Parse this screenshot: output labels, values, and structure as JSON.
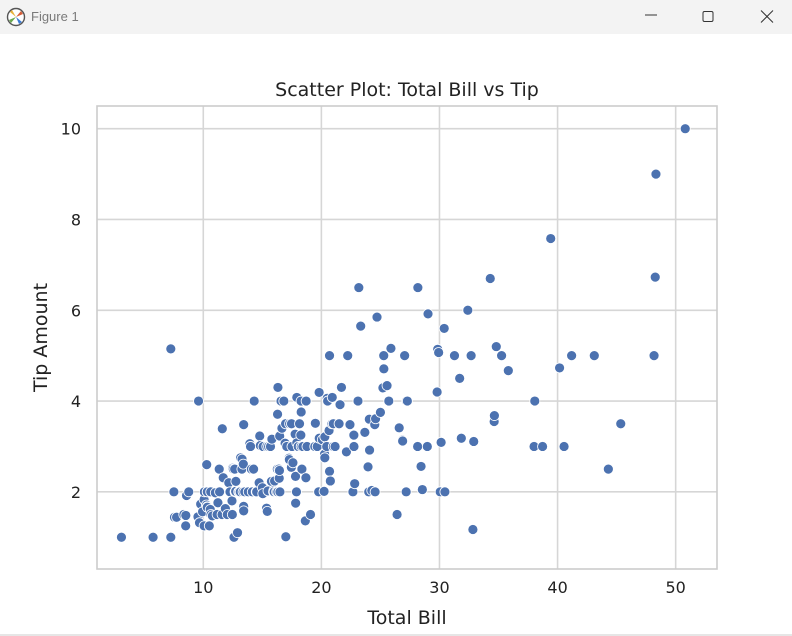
{
  "window": {
    "title": "Figure 1",
    "icons": [
      "matplotlib-app-icon",
      "minimize-icon",
      "maximize-icon",
      "close-icon"
    ]
  },
  "chart_data": {
    "type": "scatter",
    "title": "Scatter Plot: Total Bill vs Tip",
    "xlabel": "Total Bill",
    "ylabel": "Tip Amount",
    "xlim": [
      1,
      53.5
    ],
    "ylim": [
      0.3,
      10.5
    ],
    "xticks": [
      10,
      20,
      30,
      40,
      50
    ],
    "yticks": [
      2,
      4,
      6,
      8,
      10
    ],
    "grid": true,
    "marker_color": "#4c72b0",
    "points": [
      [
        3.07,
        1.0
      ],
      [
        5.75,
        1.0
      ],
      [
        7.25,
        1.0
      ],
      [
        7.25,
        5.15
      ],
      [
        7.51,
        2.0
      ],
      [
        7.56,
        1.44
      ],
      [
        7.74,
        1.44
      ],
      [
        8.35,
        1.5
      ],
      [
        8.51,
        1.25
      ],
      [
        8.52,
        1.48
      ],
      [
        8.58,
        1.92
      ],
      [
        8.77,
        2.0
      ],
      [
        9.55,
        1.45
      ],
      [
        9.6,
        4.0
      ],
      [
        9.68,
        1.32
      ],
      [
        9.78,
        1.73
      ],
      [
        9.94,
        1.56
      ],
      [
        10.07,
        1.25
      ],
      [
        10.07,
        1.83
      ],
      [
        10.09,
        2.0
      ],
      [
        10.27,
        1.71
      ],
      [
        10.29,
        2.6
      ],
      [
        10.33,
        1.67
      ],
      [
        10.33,
        2.0
      ],
      [
        10.34,
        1.66
      ],
      [
        10.34,
        2.0
      ],
      [
        10.51,
        1.25
      ],
      [
        10.59,
        1.61
      ],
      [
        10.63,
        2.0
      ],
      [
        10.65,
        1.5
      ],
      [
        10.77,
        1.47
      ],
      [
        11.02,
        1.98
      ],
      [
        11.17,
        1.5
      ],
      [
        11.24,
        1.76
      ],
      [
        11.35,
        2.5
      ],
      [
        11.38,
        2.0
      ],
      [
        11.59,
        1.5
      ],
      [
        11.61,
        3.39
      ],
      [
        11.69,
        2.31
      ],
      [
        11.87,
        1.63
      ],
      [
        12.03,
        1.5
      ],
      [
        12.16,
        2.2
      ],
      [
        12.26,
        2.0
      ],
      [
        12.43,
        1.8
      ],
      [
        12.46,
        1.5
      ],
      [
        12.48,
        2.52
      ],
      [
        12.54,
        2.5
      ],
      [
        12.6,
        1.0
      ],
      [
        12.66,
        2.5
      ],
      [
        12.69,
        2.0
      ],
      [
        12.74,
        2.01
      ],
      [
        12.76,
        2.23
      ],
      [
        12.9,
        1.1
      ],
      [
        13.0,
        2.0
      ],
      [
        13.03,
        2.0
      ],
      [
        13.13,
        2.0
      ],
      [
        13.16,
        2.75
      ],
      [
        13.27,
        2.5
      ],
      [
        13.28,
        2.72
      ],
      [
        13.37,
        2.0
      ],
      [
        13.39,
        2.61
      ],
      [
        13.42,
        3.48
      ],
      [
        13.42,
        1.68
      ],
      [
        13.42,
        1.58
      ],
      [
        13.51,
        2.0
      ],
      [
        13.81,
        2.0
      ],
      [
        13.94,
        3.06
      ],
      [
        14.0,
        3.0
      ],
      [
        14.07,
        2.5
      ],
      [
        14.15,
        2.0
      ],
      [
        14.26,
        2.5
      ],
      [
        14.31,
        4.0
      ],
      [
        14.48,
        2.0
      ],
      [
        14.52,
        2.0
      ],
      [
        14.73,
        2.2
      ],
      [
        14.78,
        3.23
      ],
      [
        14.83,
        3.02
      ],
      [
        15.01,
        2.09
      ],
      [
        15.04,
        1.96
      ],
      [
        15.06,
        3.0
      ],
      [
        15.36,
        1.64
      ],
      [
        15.38,
        3.0
      ],
      [
        15.42,
        1.57
      ],
      [
        15.48,
        2.02
      ],
      [
        15.53,
        3.0
      ],
      [
        15.69,
        3.0
      ],
      [
        15.77,
        2.23
      ],
      [
        15.81,
        3.16
      ],
      [
        15.95,
        2.0
      ],
      [
        15.98,
        2.03
      ],
      [
        16.0,
        2.0
      ],
      [
        16.04,
        2.24
      ],
      [
        16.21,
        2.0
      ],
      [
        16.27,
        2.5
      ],
      [
        16.29,
        3.71
      ],
      [
        16.31,
        2.0
      ],
      [
        16.32,
        4.3
      ],
      [
        16.4,
        2.5
      ],
      [
        16.43,
        2.3
      ],
      [
        16.45,
        2.47
      ],
      [
        16.47,
        3.23
      ],
      [
        16.49,
        2.0
      ],
      [
        16.58,
        4.0
      ],
      [
        16.66,
        3.4
      ],
      [
        16.82,
        4.0
      ],
      [
        16.93,
        3.07
      ],
      [
        16.97,
        3.5
      ],
      [
        16.99,
        1.01
      ],
      [
        17.07,
        3.0
      ],
      [
        17.26,
        2.74
      ],
      [
        17.29,
        2.71
      ],
      [
        17.31,
        3.5
      ],
      [
        17.46,
        2.54
      ],
      [
        17.47,
        3.5
      ],
      [
        17.51,
        3.0
      ],
      [
        17.59,
        2.64
      ],
      [
        17.78,
        3.27
      ],
      [
        17.81,
        2.34
      ],
      [
        17.82,
        1.75
      ],
      [
        17.89,
        2.0
      ],
      [
        17.92,
        4.08
      ],
      [
        17.92,
        3.08
      ],
      [
        18.04,
        3.0
      ],
      [
        18.15,
        3.5
      ],
      [
        18.24,
        3.76
      ],
      [
        18.26,
        3.25
      ],
      [
        18.28,
        4.0
      ],
      [
        18.29,
        3.0
      ],
      [
        18.29,
        3.76
      ],
      [
        18.35,
        2.5
      ],
      [
        18.43,
        3.0
      ],
      [
        18.64,
        1.36
      ],
      [
        18.69,
        2.31
      ],
      [
        18.71,
        4.0
      ],
      [
        18.78,
        3.0
      ],
      [
        19.08,
        1.5
      ],
      [
        19.44,
        3.0
      ],
      [
        19.49,
        3.51
      ],
      [
        19.65,
        3.0
      ],
      [
        19.77,
        2.0
      ],
      [
        19.81,
        4.19
      ],
      [
        19.82,
        3.18
      ],
      [
        20.08,
        3.15
      ],
      [
        20.23,
        2.01
      ],
      [
        20.27,
        2.83
      ],
      [
        20.29,
        2.75
      ],
      [
        20.29,
        3.21
      ],
      [
        20.45,
        3.0
      ],
      [
        20.49,
        4.06
      ],
      [
        20.53,
        4.0
      ],
      [
        20.65,
        3.35
      ],
      [
        20.69,
        2.45
      ],
      [
        20.69,
        5.0
      ],
      [
        20.76,
        2.24
      ],
      [
        20.9,
        3.5
      ],
      [
        20.92,
        4.08
      ],
      [
        21.01,
        3.5
      ],
      [
        21.01,
        3.0
      ],
      [
        21.16,
        3.0
      ],
      [
        21.5,
        3.5
      ],
      [
        21.58,
        3.92
      ],
      [
        21.7,
        4.3
      ],
      [
        22.12,
        2.88
      ],
      [
        22.23,
        5.0
      ],
      [
        22.42,
        3.48
      ],
      [
        22.67,
        2.0
      ],
      [
        22.75,
        3.25
      ],
      [
        22.76,
        3.0
      ],
      [
        22.82,
        2.18
      ],
      [
        23.1,
        4.0
      ],
      [
        23.17,
        6.5
      ],
      [
        23.33,
        5.65
      ],
      [
        23.68,
        3.31
      ],
      [
        23.95,
        2.55
      ],
      [
        24.01,
        2.0
      ],
      [
        24.06,
        3.6
      ],
      [
        24.08,
        2.92
      ],
      [
        24.27,
        2.03
      ],
      [
        24.52,
        3.48
      ],
      [
        24.55,
        2.0
      ],
      [
        24.59,
        3.61
      ],
      [
        24.71,
        5.85
      ],
      [
        25.0,
        3.75
      ],
      [
        25.21,
        4.29
      ],
      [
        25.28,
        5.0
      ],
      [
        25.29,
        4.71
      ],
      [
        25.56,
        4.34
      ],
      [
        25.71,
        4.0
      ],
      [
        25.89,
        5.16
      ],
      [
        26.41,
        1.5
      ],
      [
        26.59,
        3.41
      ],
      [
        26.86,
        3.14
      ],
      [
        26.88,
        3.12
      ],
      [
        27.05,
        5.0
      ],
      [
        27.18,
        2.0
      ],
      [
        27.2,
        4.0
      ],
      [
        27.28,
        4.0
      ],
      [
        28.15,
        3.0
      ],
      [
        28.17,
        6.5
      ],
      [
        28.44,
        2.56
      ],
      [
        28.55,
        2.05
      ],
      [
        28.97,
        3.0
      ],
      [
        29.03,
        5.92
      ],
      [
        29.8,
        4.2
      ],
      [
        29.85,
        5.14
      ],
      [
        29.93,
        5.07
      ],
      [
        30.06,
        2.0
      ],
      [
        30.14,
        3.09
      ],
      [
        30.4,
        5.6
      ],
      [
        30.46,
        2.0
      ],
      [
        31.27,
        5.0
      ],
      [
        31.71,
        4.5
      ],
      [
        31.85,
        3.18
      ],
      [
        32.4,
        6.0
      ],
      [
        32.68,
        5.0
      ],
      [
        32.83,
        1.17
      ],
      [
        32.9,
        3.11
      ],
      [
        34.3,
        6.7
      ],
      [
        34.63,
        3.55
      ],
      [
        34.65,
        3.68
      ],
      [
        34.81,
        5.2
      ],
      [
        35.26,
        5.0
      ],
      [
        35.83,
        4.67
      ],
      [
        38.01,
        3.0
      ],
      [
        38.07,
        4.0
      ],
      [
        38.73,
        3.0
      ],
      [
        39.42,
        7.58
      ],
      [
        40.17,
        4.73
      ],
      [
        40.55,
        3.0
      ],
      [
        41.19,
        5.0
      ],
      [
        43.11,
        5.0
      ],
      [
        44.3,
        2.5
      ],
      [
        45.35,
        3.5
      ],
      [
        48.17,
        5.0
      ],
      [
        48.27,
        6.73
      ],
      [
        48.33,
        9.0
      ],
      [
        50.81,
        10.0
      ]
    ]
  }
}
